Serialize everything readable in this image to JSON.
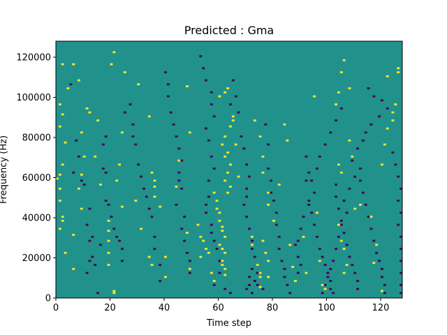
{
  "chart_data": {
    "type": "heatmap",
    "title": "Predicted : Gma",
    "xlabel": "Time step",
    "ylabel": "Frequency (Hz)",
    "xlim": [
      0,
      128
    ],
    "ylim": [
      0,
      128000
    ],
    "x_ticks": [
      0,
      20,
      40,
      60,
      80,
      100,
      120
    ],
    "y_ticks": [
      0,
      20000,
      40000,
      60000,
      80000,
      100000,
      120000
    ],
    "grid": false,
    "colors": {
      "background": "#21918c",
      "high": "#fde725",
      "low": "#440154"
    },
    "cells": {
      "note": "Each cell [time_step, frequency_bin] spans 1 time step by 1000 Hz.",
      "high": [
        [
          2,
          116
        ],
        [
          4,
          104
        ],
        [
          1,
          96
        ],
        [
          2,
          91
        ],
        [
          1,
          85
        ],
        [
          3,
          77
        ],
        [
          2,
          66
        ],
        [
          1,
          61
        ],
        [
          0,
          59
        ],
        [
          1,
          54
        ],
        [
          1,
          48
        ],
        [
          2,
          40
        ],
        [
          2,
          38
        ],
        [
          1,
          34
        ],
        [
          3,
          22
        ],
        [
          6,
          116
        ],
        [
          8,
          108
        ],
        [
          11,
          94
        ],
        [
          9,
          82
        ],
        [
          10,
          70
        ],
        [
          9,
          61
        ],
        [
          8,
          54
        ],
        [
          9,
          44
        ],
        [
          6,
          31
        ],
        [
          6,
          14
        ],
        [
          12,
          92
        ],
        [
          15,
          88
        ],
        [
          14,
          70
        ],
        [
          16,
          56
        ],
        [
          20,
          116
        ],
        [
          21,
          122
        ],
        [
          22,
          58
        ],
        [
          23,
          66
        ],
        [
          24,
          45
        ],
        [
          24,
          82
        ],
        [
          25,
          112
        ],
        [
          19,
          38
        ],
        [
          19,
          33
        ],
        [
          19,
          28
        ],
        [
          19,
          22
        ],
        [
          19,
          16
        ],
        [
          21,
          3
        ],
        [
          21,
          2
        ],
        [
          30,
          106
        ],
        [
          29,
          48
        ],
        [
          31,
          34
        ],
        [
          34,
          90
        ],
        [
          35,
          62
        ],
        [
          36,
          58
        ],
        [
          36,
          55
        ],
        [
          36,
          50
        ],
        [
          34,
          20
        ],
        [
          35,
          16
        ],
        [
          38,
          45
        ],
        [
          40,
          20
        ],
        [
          40,
          10
        ],
        [
          44,
          55
        ],
        [
          45,
          68
        ],
        [
          48,
          105
        ],
        [
          49,
          82
        ],
        [
          48,
          32
        ],
        [
          49,
          14
        ],
        [
          52,
          36
        ],
        [
          53,
          30
        ],
        [
          54,
          28
        ],
        [
          53,
          20
        ],
        [
          55,
          24
        ],
        [
          56,
          22
        ],
        [
          57,
          12
        ],
        [
          58,
          8
        ],
        [
          58,
          52
        ],
        [
          59,
          48
        ],
        [
          59,
          44
        ],
        [
          60,
          42
        ],
        [
          60,
          38
        ],
        [
          61,
          35
        ],
        [
          61,
          33
        ],
        [
          62,
          30
        ],
        [
          60,
          26
        ],
        [
          61,
          24
        ],
        [
          62,
          22
        ],
        [
          61,
          18
        ],
        [
          61,
          16
        ],
        [
          62,
          14
        ],
        [
          62,
          11
        ],
        [
          63,
          52
        ],
        [
          64,
          55
        ],
        [
          62,
          58
        ],
        [
          63,
          62
        ],
        [
          64,
          66
        ],
        [
          62,
          70
        ],
        [
          63,
          72
        ],
        [
          61,
          76
        ],
        [
          62,
          80
        ],
        [
          64,
          85
        ],
        [
          65,
          90
        ],
        [
          60,
          100
        ],
        [
          62,
          102
        ],
        [
          63,
          104
        ],
        [
          65,
          88
        ],
        [
          66,
          76
        ],
        [
          67,
          60
        ],
        [
          72,
          30
        ],
        [
          72,
          26
        ],
        [
          74,
          16
        ],
        [
          75,
          12
        ],
        [
          75,
          10
        ],
        [
          75,
          5
        ],
        [
          76,
          28
        ],
        [
          77,
          22
        ],
        [
          78,
          18
        ],
        [
          78,
          10
        ],
        [
          73,
          88
        ],
        [
          75,
          80
        ],
        [
          76,
          70
        ],
        [
          76,
          62
        ],
        [
          78,
          52
        ],
        [
          78,
          46
        ],
        [
          80,
          38
        ],
        [
          82,
          56
        ],
        [
          84,
          86
        ],
        [
          85,
          78
        ],
        [
          86,
          26
        ],
        [
          87,
          15
        ],
        [
          88,
          8
        ],
        [
          91,
          30
        ],
        [
          92,
          12
        ],
        [
          95,
          100
        ],
        [
          96,
          42
        ],
        [
          97,
          18
        ],
        [
          98,
          6
        ],
        [
          99,
          4
        ],
        [
          103,
          96
        ],
        [
          104,
          102
        ],
        [
          105,
          112
        ],
        [
          106,
          118
        ],
        [
          108,
          104
        ],
        [
          104,
          66
        ],
        [
          105,
          62
        ],
        [
          104,
          36
        ],
        [
          105,
          28
        ],
        [
          106,
          24
        ],
        [
          107,
          16
        ],
        [
          106,
          12
        ],
        [
          108,
          78
        ],
        [
          109,
          70
        ],
        [
          112,
          46
        ],
        [
          110,
          44
        ],
        [
          116,
          40
        ],
        [
          118,
          26
        ],
        [
          117,
          17
        ],
        [
          120,
          3
        ],
        [
          120,
          66
        ],
        [
          121,
          76
        ],
        [
          122,
          84
        ],
        [
          124,
          88
        ],
        [
          124,
          92
        ],
        [
          125,
          96
        ],
        [
          126,
          112
        ],
        [
          126,
          114
        ],
        [
          122,
          110
        ]
      ],
      "low": [
        [
          5,
          106
        ],
        [
          7,
          78
        ],
        [
          8,
          70
        ],
        [
          6,
          62
        ],
        [
          9,
          58
        ],
        [
          10,
          56
        ],
        [
          12,
          44
        ],
        [
          11,
          36
        ],
        [
          13,
          30
        ],
        [
          12,
          28
        ],
        [
          13,
          20
        ],
        [
          12,
          18
        ],
        [
          14,
          16
        ],
        [
          11,
          12
        ],
        [
          15,
          2
        ],
        [
          16,
          26
        ],
        [
          18,
          80
        ],
        [
          17,
          76
        ],
        [
          17,
          64
        ],
        [
          18,
          62
        ],
        [
          18,
          48
        ],
        [
          19,
          46
        ],
        [
          20,
          40
        ],
        [
          21,
          34
        ],
        [
          22,
          30
        ],
        [
          23,
          28
        ],
        [
          24,
          24
        ],
        [
          24,
          18
        ],
        [
          25,
          92
        ],
        [
          27,
          96
        ],
        [
          28,
          86
        ],
        [
          28,
          80
        ],
        [
          29,
          76
        ],
        [
          30,
          66
        ],
        [
          31,
          60
        ],
        [
          32,
          54
        ],
        [
          33,
          50
        ],
        [
          34,
          44
        ],
        [
          35,
          40
        ],
        [
          36,
          30
        ],
        [
          36,
          24
        ],
        [
          38,
          16
        ],
        [
          38,
          8
        ],
        [
          40,
          112
        ],
        [
          41,
          106
        ],
        [
          41,
          100
        ],
        [
          42,
          92
        ],
        [
          43,
          86
        ],
        [
          44,
          80
        ],
        [
          45,
          74
        ],
        [
          46,
          68
        ],
        [
          45,
          62
        ],
        [
          45,
          58
        ],
        [
          46,
          54
        ],
        [
          44,
          46
        ],
        [
          47,
          40
        ],
        [
          46,
          34
        ],
        [
          47,
          28
        ],
        [
          48,
          22
        ],
        [
          49,
          18
        ],
        [
          49,
          12
        ],
        [
          53,
          120
        ],
        [
          54,
          114
        ],
        [
          55,
          108
        ],
        [
          57,
          102
        ],
        [
          57,
          96
        ],
        [
          58,
          90
        ],
        [
          55,
          84
        ],
        [
          56,
          78
        ],
        [
          57,
          70
        ],
        [
          58,
          64
        ],
        [
          56,
          58
        ],
        [
          56,
          50
        ],
        [
          55,
          46
        ],
        [
          55,
          42
        ],
        [
          57,
          36
        ],
        [
          57,
          32
        ],
        [
          58,
          28
        ],
        [
          59,
          24
        ],
        [
          60,
          18
        ],
        [
          60,
          12
        ],
        [
          58,
          6
        ],
        [
          62,
          4
        ],
        [
          64,
          2
        ],
        [
          64,
          96
        ],
        [
          65,
          108
        ],
        [
          66,
          100
        ],
        [
          67,
          92
        ],
        [
          68,
          80
        ],
        [
          69,
          74
        ],
        [
          70,
          66
        ],
        [
          71,
          60
        ],
        [
          70,
          54
        ],
        [
          70,
          50
        ],
        [
          69,
          46
        ],
        [
          70,
          40
        ],
        [
          71,
          34
        ],
        [
          72,
          28
        ],
        [
          72,
          24
        ],
        [
          73,
          20
        ],
        [
          72,
          14
        ],
        [
          71,
          10
        ],
        [
          71,
          6
        ],
        [
          70,
          4
        ],
        [
          72,
          2
        ],
        [
          73,
          8
        ],
        [
          74,
          12
        ],
        [
          74,
          6
        ],
        [
          76,
          4
        ],
        [
          77,
          86
        ],
        [
          78,
          76
        ],
        [
          78,
          64
        ],
        [
          79,
          58
        ],
        [
          79,
          52
        ],
        [
          80,
          48
        ],
        [
          81,
          42
        ],
        [
          81,
          36
        ],
        [
          82,
          30
        ],
        [
          82,
          24
        ],
        [
          83,
          18
        ],
        [
          84,
          14
        ],
        [
          84,
          10
        ],
        [
          85,
          6
        ],
        [
          86,
          2
        ],
        [
          88,
          26
        ],
        [
          89,
          20
        ],
        [
          90,
          16
        ],
        [
          89,
          12
        ],
        [
          92,
          70
        ],
        [
          93,
          62
        ],
        [
          92,
          58
        ],
        [
          93,
          48
        ],
        [
          94,
          42
        ],
        [
          95,
          36
        ],
        [
          96,
          30
        ],
        [
          97,
          24
        ],
        [
          98,
          20
        ],
        [
          99,
          16
        ],
        [
          100,
          12
        ],
        [
          101,
          8
        ],
        [
          101,
          4
        ],
        [
          102,
          2
        ],
        [
          103,
          56
        ],
        [
          103,
          50
        ],
        [
          104,
          44
        ],
        [
          105,
          38
        ],
        [
          106,
          32
        ],
        [
          107,
          26
        ],
        [
          108,
          20
        ],
        [
          109,
          16
        ],
        [
          110,
          12
        ],
        [
          111,
          8
        ],
        [
          111,
          4
        ],
        [
          112,
          64
        ],
        [
          112,
          58
        ],
        [
          113,
          52
        ],
        [
          114,
          46
        ],
        [
          115,
          40
        ],
        [
          116,
          34
        ],
        [
          117,
          28
        ],
        [
          118,
          22
        ],
        [
          119,
          18
        ],
        [
          120,
          14
        ],
        [
          120,
          10
        ],
        [
          121,
          6
        ],
        [
          121,
          2
        ],
        [
          124,
          72
        ],
        [
          125,
          66
        ],
        [
          126,
          60
        ],
        [
          127,
          54
        ],
        [
          126,
          48
        ],
        [
          127,
          42
        ],
        [
          126,
          36
        ],
        [
          127,
          30
        ],
        [
          127,
          24
        ],
        [
          127,
          18
        ],
        [
          127,
          12
        ],
        [
          127,
          6
        ],
        [
          127,
          2
        ],
        [
          105,
          94
        ],
        [
          103,
          88
        ],
        [
          101,
          82
        ],
        [
          99,
          76
        ],
        [
          97,
          70
        ],
        [
          96,
          64
        ],
        [
          94,
          58
        ],
        [
          95,
          52
        ],
        [
          93,
          46
        ],
        [
          91,
          40
        ],
        [
          90,
          34
        ],
        [
          89,
          28
        ],
        [
          115,
          104
        ],
        [
          117,
          100
        ],
        [
          120,
          98
        ],
        [
          122,
          94
        ],
        [
          119,
          90
        ],
        [
          116,
          86
        ],
        [
          114,
          82
        ],
        [
          113,
          78
        ],
        [
          111,
          74
        ],
        [
          109,
          68
        ],
        [
          110,
          60
        ],
        [
          108,
          54
        ],
        [
          106,
          48
        ],
        [
          107,
          42
        ],
        [
          105,
          36
        ],
        [
          104,
          30
        ],
        [
          103,
          24
        ],
        [
          102,
          18
        ],
        [
          101,
          14
        ],
        [
          100,
          10
        ],
        [
          99,
          6
        ],
        [
          98,
          2
        ]
      ]
    }
  }
}
